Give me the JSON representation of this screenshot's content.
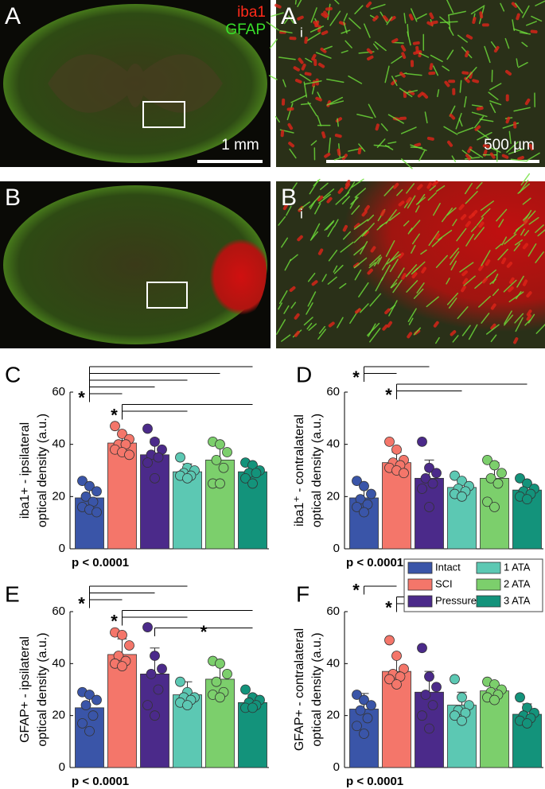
{
  "images": [
    {
      "letter": "A",
      "labels": [
        "iba1",
        "GFAP"
      ],
      "scale": "1 mm"
    },
    {
      "letter": "A",
      "sub": "i",
      "scale": "500 µm"
    },
    {
      "letter": "B"
    },
    {
      "letter": "B",
      "sub": "i"
    }
  ],
  "groups": {
    "names": [
      "Intact",
      "SCI",
      "Pressure",
      "1 ATA",
      "2 ATA",
      "3 ATA"
    ],
    "colors": [
      "#3a55a8",
      "#f4766a",
      "#4b2a8a",
      "#5cc8b3",
      "#7ccf6c",
      "#13937b"
    ]
  },
  "chart_data": [
    {
      "type": "bar",
      "panel": "C",
      "ylabel": [
        "iba1+ - ipsilateral",
        "optical density (a.u.)"
      ],
      "note": "p < 0.0001",
      "ylim": [
        0,
        60
      ],
      "yticks": [
        0,
        20,
        40,
        60
      ],
      "values": [
        19.5,
        40.5,
        36,
        29.5,
        34,
        29.5
      ],
      "errors": [
        4,
        3.5,
        6,
        3,
        5.5,
        3
      ],
      "points": [
        [
          26,
          24,
          22,
          20,
          18,
          16,
          15,
          14
        ],
        [
          47,
          44,
          42,
          40,
          40,
          38,
          37,
          36
        ],
        [
          46,
          41,
          38,
          36,
          35,
          33,
          27
        ],
        [
          35,
          31,
          30,
          29,
          28,
          28,
          27
        ],
        [
          41,
          40,
          37,
          34,
          31,
          25,
          25
        ],
        [
          33,
          32,
          30,
          29,
          29,
          27,
          25
        ]
      ],
      "significance": [
        {
          "from": 0,
          "to": [
            1,
            2,
            3,
            4,
            5
          ],
          "label": "*"
        },
        {
          "from": 1,
          "to": [
            3,
            5
          ],
          "label": "*"
        }
      ]
    },
    {
      "type": "bar",
      "panel": "D",
      "ylabel": [
        "iba1⁺ - contralateral",
        "optical density (a.u.)"
      ],
      "note": "p < 0.0001",
      "ylim": [
        0,
        60
      ],
      "yticks": [
        0,
        20,
        40,
        60
      ],
      "values": [
        19.5,
        33,
        27,
        23.5,
        27,
        22.5
      ],
      "errors": [
        4,
        4,
        7,
        3,
        6,
        3
      ],
      "points": [
        [
          26,
          24,
          21,
          19,
          17,
          16,
          14
        ],
        [
          41,
          38,
          34,
          33,
          32,
          31,
          30,
          29
        ],
        [
          41,
          31,
          29,
          27,
          25,
          23,
          16
        ],
        [
          28,
          26,
          24,
          23,
          22,
          21,
          20
        ],
        [
          34,
          32,
          29,
          27,
          25,
          18,
          16
        ],
        [
          27,
          25,
          23,
          22,
          21,
          20,
          19
        ]
      ],
      "significance": [
        {
          "from": 0,
          "to": [
            1,
            2
          ],
          "label": "*"
        },
        {
          "from": 1,
          "to": [
            3,
            5
          ],
          "label": "*"
        }
      ]
    },
    {
      "type": "bar",
      "panel": "E",
      "ylabel": [
        "GFAP+ - ipsilateral",
        "optical density (a.u.)"
      ],
      "note": "p < 0.0001",
      "ylim": [
        0,
        60
      ],
      "yticks": [
        0,
        20,
        40,
        60
      ],
      "values": [
        23,
        43.5,
        36,
        28,
        34,
        25
      ],
      "errors": [
        5,
        6,
        10,
        5,
        6,
        3
      ],
      "points": [
        [
          29,
          28,
          26,
          24,
          20,
          17,
          14
        ],
        [
          52,
          51,
          47,
          43,
          41,
          40,
          39
        ],
        [
          54,
          43,
          38,
          36,
          30,
          24,
          20
        ],
        [
          33,
          29,
          27,
          27,
          26,
          25,
          24
        ],
        [
          41,
          40,
          36,
          33,
          29,
          28,
          27
        ],
        [
          30,
          27,
          26,
          25,
          24,
          23,
          23
        ]
      ],
      "significance": [
        {
          "from": 0,
          "to": [
            1,
            2,
            3
          ],
          "label": "*"
        },
        {
          "from": 1,
          "to": [
            3,
            5
          ],
          "label": "*"
        },
        {
          "from": 2,
          "to": [
            5
          ],
          "label": "*"
        }
      ]
    },
    {
      "type": "bar",
      "panel": "F",
      "ylabel": [
        "GFAP+ - contralateral",
        "optical density (a.u.)"
      ],
      "note": "p < 0.0001",
      "legend": true,
      "ylim": [
        0,
        60
      ],
      "yticks": [
        0,
        20,
        40,
        60
      ],
      "values": [
        22.5,
        37,
        29,
        24,
        29.5,
        20.5
      ],
      "errors": [
        6,
        6,
        8,
        5,
        3,
        4
      ],
      "points": [
        [
          28,
          26,
          24,
          22,
          19,
          16,
          13
        ],
        [
          49,
          43,
          38,
          36,
          35,
          34,
          32
        ],
        [
          46,
          35,
          31,
          28,
          24,
          20,
          15
        ],
        [
          34,
          27,
          24,
          22,
          21,
          20,
          18
        ],
        [
          33,
          32,
          30,
          29,
          28,
          27,
          26
        ],
        [
          27,
          23,
          21,
          20,
          19,
          18,
          17
        ]
      ],
      "significance": [
        {
          "from": 0,
          "to": [
            1
          ],
          "label": "*"
        },
        {
          "from": 1,
          "to": [
            3,
            5
          ],
          "label": "*"
        }
      ]
    }
  ]
}
